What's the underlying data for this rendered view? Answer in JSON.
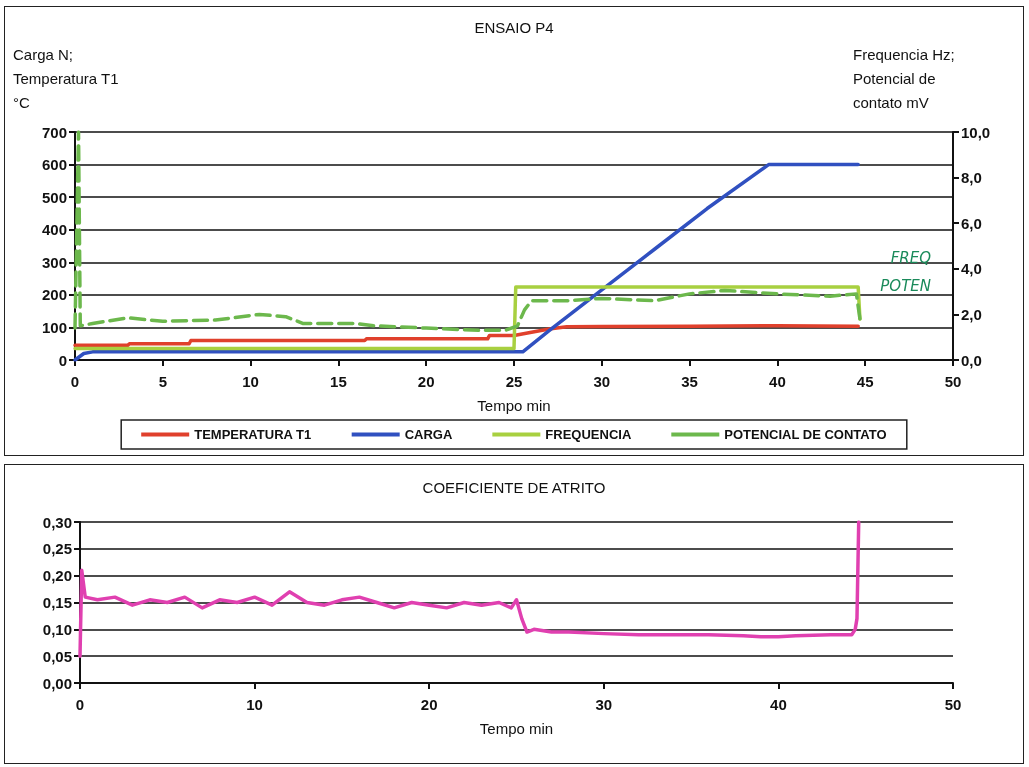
{
  "chart_data": [
    {
      "type": "line",
      "title": "ENSAIO P4",
      "ylabel": "Carga N;\nTemperatura T1\n°C",
      "y2label": "Frequencia Hz;\nPotencial de\ncontato mV",
      "xlabel": "Tempo min",
      "xlim": [
        0,
        50
      ],
      "xticks": [
        0,
        5,
        10,
        15,
        20,
        25,
        30,
        35,
        40,
        45,
        50
      ],
      "ylim": [
        0,
        700
      ],
      "yticks": [
        0,
        100,
        200,
        300,
        400,
        500,
        600,
        700
      ],
      "y2lim": [
        0,
        10
      ],
      "y2ticks": [
        {
          "value": 0,
          "label": "0,0"
        },
        {
          "value": 2,
          "label": "2,0"
        },
        {
          "value": 4,
          "label": "4,0"
        },
        {
          "value": 6,
          "label": "6,0"
        },
        {
          "value": 8,
          "label": "8,0"
        },
        {
          "value": 10,
          "label": "10,0"
        }
      ],
      "grid": "y",
      "legend": "bottom",
      "marker": "none",
      "line_style": "solid",
      "annotations": [
        "FREQ",
        "POTEN"
      ],
      "series": [
        {
          "name": "TEMPERATURA T1",
          "color": "#e0402c",
          "x": [
            0,
            3,
            3.1,
            6.5,
            6.6,
            16.5,
            16.6,
            23.5,
            23.6,
            25,
            26,
            27,
            28,
            30,
            35,
            40,
            44.6
          ],
          "values": [
            45,
            45,
            50,
            50,
            60,
            60,
            65,
            65,
            75,
            75,
            85,
            95,
            102,
            103,
            104,
            105,
            104
          ]
        },
        {
          "name": "CARGA",
          "color": "#3050c0",
          "x": [
            0,
            0.5,
            1,
            25,
            25.5,
            27,
            30,
            33,
            36,
            39.5,
            42,
            44.6
          ],
          "values": [
            0,
            20,
            25,
            25,
            25,
            90,
            215,
            340,
            465,
            600,
            600,
            600
          ]
        },
        {
          "name": "FREQUENCIA",
          "color": "#a8d040",
          "axis": "y2",
          "x": [
            0,
            0.3,
            25,
            25.1,
            44.6,
            44.7
          ],
          "values": [
            0.5,
            0.5,
            0.5,
            3.2,
            3.2,
            1.8
          ]
        },
        {
          "name": "POTENCIAL DE CONTATO",
          "color": "#6cb84c",
          "axis": "y2",
          "line_style": "dashed",
          "x": [
            0,
            0.2,
            0.3,
            1,
            3,
            5,
            8,
            10.5,
            12,
            13,
            16,
            17,
            20,
            23,
            24.5,
            25.2,
            25.6,
            26,
            28,
            30,
            33,
            35,
            37,
            40,
            43,
            44.5,
            44.7
          ],
          "values": [
            1.4,
            10,
            1.5,
            1.6,
            1.85,
            1.7,
            1.75,
            2.0,
            1.9,
            1.6,
            1.6,
            1.5,
            1.4,
            1.3,
            1.3,
            1.5,
            2.2,
            2.6,
            2.6,
            2.7,
            2.6,
            2.9,
            3.05,
            2.9,
            2.8,
            2.9,
            1.8
          ]
        }
      ]
    },
    {
      "type": "line",
      "title": "COEFICIENTE DE ATRITO",
      "xlabel": "Tempo min",
      "xlim": [
        0,
        50
      ],
      "xticks": [
        0,
        10,
        20,
        30,
        40,
        50
      ],
      "ylim": [
        0,
        0.3
      ],
      "yticks": [
        {
          "value": 0,
          "label": "0,00"
        },
        {
          "value": 0.05,
          "label": "0,05"
        },
        {
          "value": 0.1,
          "label": "0,10"
        },
        {
          "value": 0.15,
          "label": "0,15"
        },
        {
          "value": 0.2,
          "label": "0,20"
        },
        {
          "value": 0.25,
          "label": "0,25"
        },
        {
          "value": 0.3,
          "label": "0,30"
        }
      ],
      "grid": "y",
      "marker": "none",
      "line_style": "solid",
      "series": [
        {
          "color": "#e040b0",
          "x": [
            0,
            0.1,
            0.3,
            1,
            2,
            3,
            4,
            5,
            6,
            7,
            8,
            9,
            10,
            11,
            12,
            13,
            14,
            15,
            16,
            17,
            18,
            19,
            20,
            21,
            22,
            23,
            24,
            24.7,
            25,
            25.3,
            25.6,
            26,
            27,
            28,
            30,
            32,
            34,
            36,
            38,
            39,
            40,
            41,
            43,
            44.2,
            44.4,
            44.5,
            44.6
          ],
          "values": [
            0.05,
            0.21,
            0.16,
            0.155,
            0.16,
            0.145,
            0.155,
            0.15,
            0.16,
            0.14,
            0.155,
            0.15,
            0.16,
            0.145,
            0.17,
            0.15,
            0.145,
            0.155,
            0.16,
            0.15,
            0.14,
            0.15,
            0.145,
            0.14,
            0.15,
            0.145,
            0.15,
            0.14,
            0.155,
            0.12,
            0.095,
            0.1,
            0.095,
            0.095,
            0.092,
            0.09,
            0.09,
            0.09,
            0.088,
            0.086,
            0.086,
            0.088,
            0.09,
            0.09,
            0.1,
            0.12,
            0.3
          ]
        }
      ]
    }
  ]
}
